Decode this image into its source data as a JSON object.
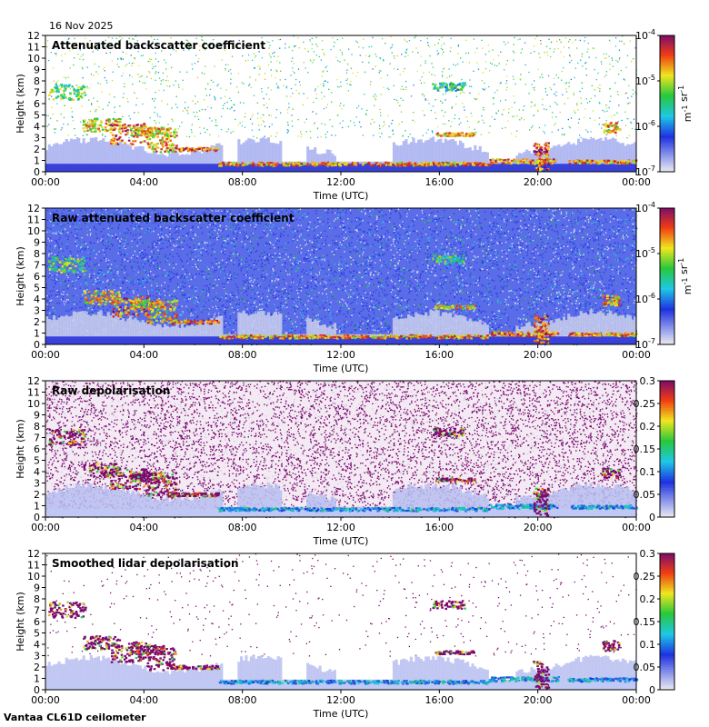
{
  "date": "16 Nov 2025",
  "footer": "Vantaa CL61D ceilometer",
  "colors": {
    "background_fill": "#dcdcdc",
    "cloud_red": "#d01818",
    "cloud_yellow": "#f0e020",
    "cloud_green": "#20c030",
    "aerosol_blue": "#1030e0",
    "depol_purple": "#7a0a6e"
  },
  "chart_data": [
    {
      "type": "heatmap",
      "title": "Attenuated backscatter coefficient",
      "xlabel": "Time (UTC)",
      "ylabel": "Height (km)",
      "x_ticks": [
        "00:00",
        "04:00",
        "08:00",
        "12:00",
        "16:00",
        "20:00",
        "00:00"
      ],
      "y_ticks": [
        "0",
        "1",
        "2",
        "3",
        "4",
        "5",
        "6",
        "7",
        "8",
        "9",
        "10",
        "11",
        "12"
      ],
      "ylim": [
        0,
        12
      ],
      "colorbar": {
        "scale": "log",
        "ticks": [
          "10-7",
          "10-6",
          "10-5",
          "10-4"
        ],
        "unit": "m-1 sr-1",
        "range": [
          1e-07,
          0.0001
        ]
      }
    },
    {
      "type": "heatmap",
      "title": "Raw attenuated backscatter coefficient",
      "xlabel": "Time (UTC)",
      "ylabel": "Height (km)",
      "x_ticks": [
        "00:00",
        "04:00",
        "08:00",
        "12:00",
        "16:00",
        "20:00",
        "00:00"
      ],
      "y_ticks": [
        "0",
        "1",
        "2",
        "3",
        "4",
        "5",
        "6",
        "7",
        "8",
        "9",
        "10",
        "11",
        "12"
      ],
      "ylim": [
        0,
        12
      ],
      "colorbar": {
        "scale": "log",
        "ticks": [
          "10-7",
          "10-6",
          "10-5",
          "10-4"
        ],
        "unit": "m-1 sr-1",
        "range": [
          1e-07,
          0.0001
        ]
      }
    },
    {
      "type": "heatmap",
      "title": "Raw depolarisation",
      "xlabel": "Time (UTC)",
      "ylabel": "Height (km)",
      "x_ticks": [
        "00:00",
        "04:00",
        "08:00",
        "12:00",
        "16:00",
        "20:00",
        "00:00"
      ],
      "y_ticks": [
        "0",
        "1",
        "2",
        "3",
        "4",
        "5",
        "6",
        "7",
        "8",
        "9",
        "10",
        "11",
        "12"
      ],
      "ylim": [
        0,
        12
      ],
      "colorbar": {
        "scale": "linear",
        "ticks": [
          "0",
          "0.05",
          "0.1",
          "0.15",
          "0.2",
          "0.25",
          "0.3"
        ],
        "range": [
          0,
          0.3
        ]
      }
    },
    {
      "type": "heatmap",
      "title": "Smoothed lidar depolarisation",
      "xlabel": "Time (UTC)",
      "ylabel": "Height (km)",
      "x_ticks": [
        "00:00",
        "04:00",
        "08:00",
        "12:00",
        "16:00",
        "20:00",
        "00:00"
      ],
      "y_ticks": [
        "0",
        "1",
        "2",
        "3",
        "4",
        "5",
        "6",
        "7",
        "8",
        "9",
        "10",
        "11",
        "12"
      ],
      "ylim": [
        0,
        12
      ],
      "colorbar": {
        "scale": "linear",
        "ticks": [
          "0",
          "0.05",
          "0.1",
          "0.15",
          "0.2",
          "0.25",
          "0.3"
        ],
        "range": [
          0,
          0.3
        ]
      }
    }
  ]
}
